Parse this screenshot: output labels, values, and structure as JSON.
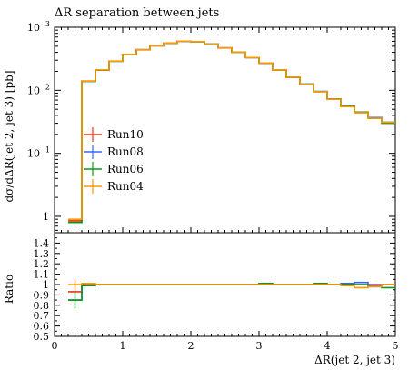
{
  "chart_data": {
    "type": "line",
    "title": "ΔR separation between jets",
    "xlabel": "ΔR(jet 2, jet 3)",
    "ylabel": "dσ/dΔR(jet 2, jet 3) [pb]",
    "ratio_ylabel": "Ratio",
    "xlim": [
      0,
      5
    ],
    "ylim_log": [
      0.55,
      1000
    ],
    "ratio_ylim": [
      0.5,
      1.5
    ],
    "yscale": "log",
    "legend_position": "left",
    "x_ticks": [
      "0",
      "1",
      "2",
      "3",
      "4",
      "5"
    ],
    "x_tick_values": [
      0,
      1,
      2,
      3,
      4,
      5
    ],
    "y_ticks": [
      "1",
      "10^1",
      "10^2",
      "10^3"
    ],
    "y_tick_values": [
      1,
      10,
      100,
      1000
    ],
    "ratio_ticks": [
      "0.5",
      "0.6",
      "0.7",
      "0.8",
      "0.9",
      "1",
      "1.1",
      "1.2",
      "1.3",
      "1.4"
    ],
    "ratio_tick_values": [
      0.5,
      0.6,
      0.7,
      0.8,
      0.9,
      1.0,
      1.1,
      1.2,
      1.3,
      1.4
    ],
    "bin_edges": [
      0.2,
      0.4,
      0.6,
      0.8,
      1.0,
      1.2,
      1.4,
      1.6,
      1.8,
      2.0,
      2.2,
      2.4,
      2.6,
      2.8,
      3.0,
      3.2,
      3.4,
      3.6,
      3.8,
      4.0,
      4.2,
      4.4,
      4.6,
      4.8,
      5.0
    ],
    "series": [
      {
        "name": "Run10",
        "color": "#ee3311",
        "values": [
          0.85,
          140,
          210,
          290,
          370,
          440,
          510,
          560,
          600,
          590,
          540,
          470,
          400,
          330,
          270,
          210,
          160,
          125,
          95,
          72,
          56,
          45,
          37,
          31
        ],
        "ratio": [
          0.93,
          1.0,
          1.0,
          1.0,
          1.0,
          1.0,
          1.0,
          1.0,
          1.0,
          1.0,
          1.0,
          1.0,
          1.0,
          1.0,
          1.0,
          1.0,
          1.0,
          1.0,
          1.0,
          1.0,
          1.0,
          1.0,
          1.0,
          1.0
        ],
        "ratio_err": [
          0.12,
          0.0,
          0.0,
          0.0,
          0.0,
          0.0,
          0.0,
          0.0,
          0.0,
          0.0,
          0.0,
          0.0,
          0.0,
          0.0,
          0.0,
          0.0,
          0.0,
          0.0,
          0.0,
          0.0,
          0.0,
          0.0,
          0.0,
          0.0
        ]
      },
      {
        "name": "Run08",
        "color": "#3366ff",
        "values": [
          0.8,
          139,
          209,
          289,
          369,
          439,
          509,
          559,
          599,
          589,
          539,
          469,
          399,
          331,
          271,
          211,
          161,
          126,
          96,
          73,
          57,
          45,
          37,
          31
        ],
        "ratio": [
          0.85,
          0.99,
          1.0,
          1.0,
          1.0,
          1.0,
          1.0,
          1.0,
          1.0,
          1.0,
          1.0,
          1.0,
          1.0,
          1.0,
          1.0,
          1.0,
          1.0,
          1.0,
          1.0,
          1.0,
          1.01,
          1.02,
          0.99,
          1.0
        ],
        "ratio_err": [
          0.08,
          0.0,
          0.0,
          0.0,
          0.0,
          0.0,
          0.0,
          0.0,
          0.0,
          0.0,
          0.0,
          0.0,
          0.0,
          0.0,
          0.0,
          0.0,
          0.0,
          0.0,
          0.0,
          0.0,
          0.0,
          0.0,
          0.0,
          0.0
        ]
      },
      {
        "name": "Run06",
        "color": "#109618",
        "values": [
          0.8,
          139,
          210,
          289,
          370,
          440,
          510,
          559,
          600,
          590,
          540,
          470,
          400,
          330,
          270,
          210,
          160,
          125,
          95,
          72,
          56,
          45,
          36,
          30
        ],
        "ratio": [
          0.85,
          0.99,
          1.0,
          1.0,
          1.0,
          1.0,
          1.0,
          1.0,
          1.0,
          1.0,
          1.0,
          1.0,
          1.0,
          1.0,
          1.01,
          1.0,
          1.0,
          1.0,
          1.01,
          1.0,
          1.0,
          1.0,
          0.98,
          0.97
        ],
        "ratio_err": [
          0.08,
          0.0,
          0.0,
          0.0,
          0.0,
          0.0,
          0.0,
          0.0,
          0.0,
          0.0,
          0.0,
          0.0,
          0.0,
          0.0,
          0.0,
          0.0,
          0.0,
          0.0,
          0.0,
          0.0,
          0.0,
          0.0,
          0.0,
          0.0
        ]
      },
      {
        "name": "Run04",
        "color": "#ff9900",
        "values": [
          0.9,
          140,
          211,
          291,
          371,
          441,
          511,
          561,
          601,
          591,
          541,
          471,
          401,
          331,
          271,
          211,
          161,
          125,
          95,
          72,
          55,
          44,
          36,
          31
        ],
        "ratio": [
          1.0,
          1.01,
          1.0,
          1.0,
          1.0,
          1.0,
          1.0,
          1.0,
          1.0,
          1.0,
          1.0,
          1.0,
          1.0,
          1.0,
          1.0,
          1.0,
          1.0,
          1.0,
          1.0,
          1.0,
          0.99,
          0.97,
          0.98,
          1.0
        ],
        "ratio_err": [
          0.04,
          0.0,
          0.0,
          0.0,
          0.0,
          0.0,
          0.0,
          0.0,
          0.0,
          0.0,
          0.0,
          0.0,
          0.0,
          0.0,
          0.0,
          0.0,
          0.0,
          0.0,
          0.0,
          0.0,
          0.0,
          0.0,
          0.0,
          0.0
        ]
      }
    ]
  }
}
